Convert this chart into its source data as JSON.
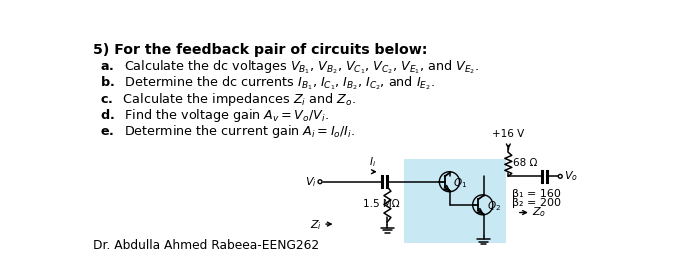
{
  "title": "5) For the feedback pair of circuits below:",
  "bg_color": "#ffffff",
  "circuit_bg": "#c8e8f4",
  "vcc": "+16 V",
  "r1": "68 Ω",
  "r2": "1.5 MΩ",
  "beta1": "β₁ = 160",
  "beta2": "β₂ = 200",
  "footer": "Dr. Abdulla Ahmed Rabeea-EENG262",
  "text_lines": [
    "a.  Calculate the dc voltages $V_{B_1}$, $V_{B_2}$, $V_{C_1}$, $V_{C_2}$, $V_{E_1}$, and $V_{E_2}$.",
    "b.  Determine the dc currents $I_{B_1}$, $I_{C_1}$, $I_{B_2}$, $I_{C_2}$, and $I_{E_2}$.",
    "c.  Calculate the impedances $Z_i$ and $Z_o$.",
    "d.  Find the voltage gain $A_v = V_o/V_i$.",
    "e.  Determine the current gain $A_i = I_o/I_i$."
  ],
  "line_labels": [
    "a.",
    "b.",
    "c.",
    "d.",
    "e."
  ]
}
